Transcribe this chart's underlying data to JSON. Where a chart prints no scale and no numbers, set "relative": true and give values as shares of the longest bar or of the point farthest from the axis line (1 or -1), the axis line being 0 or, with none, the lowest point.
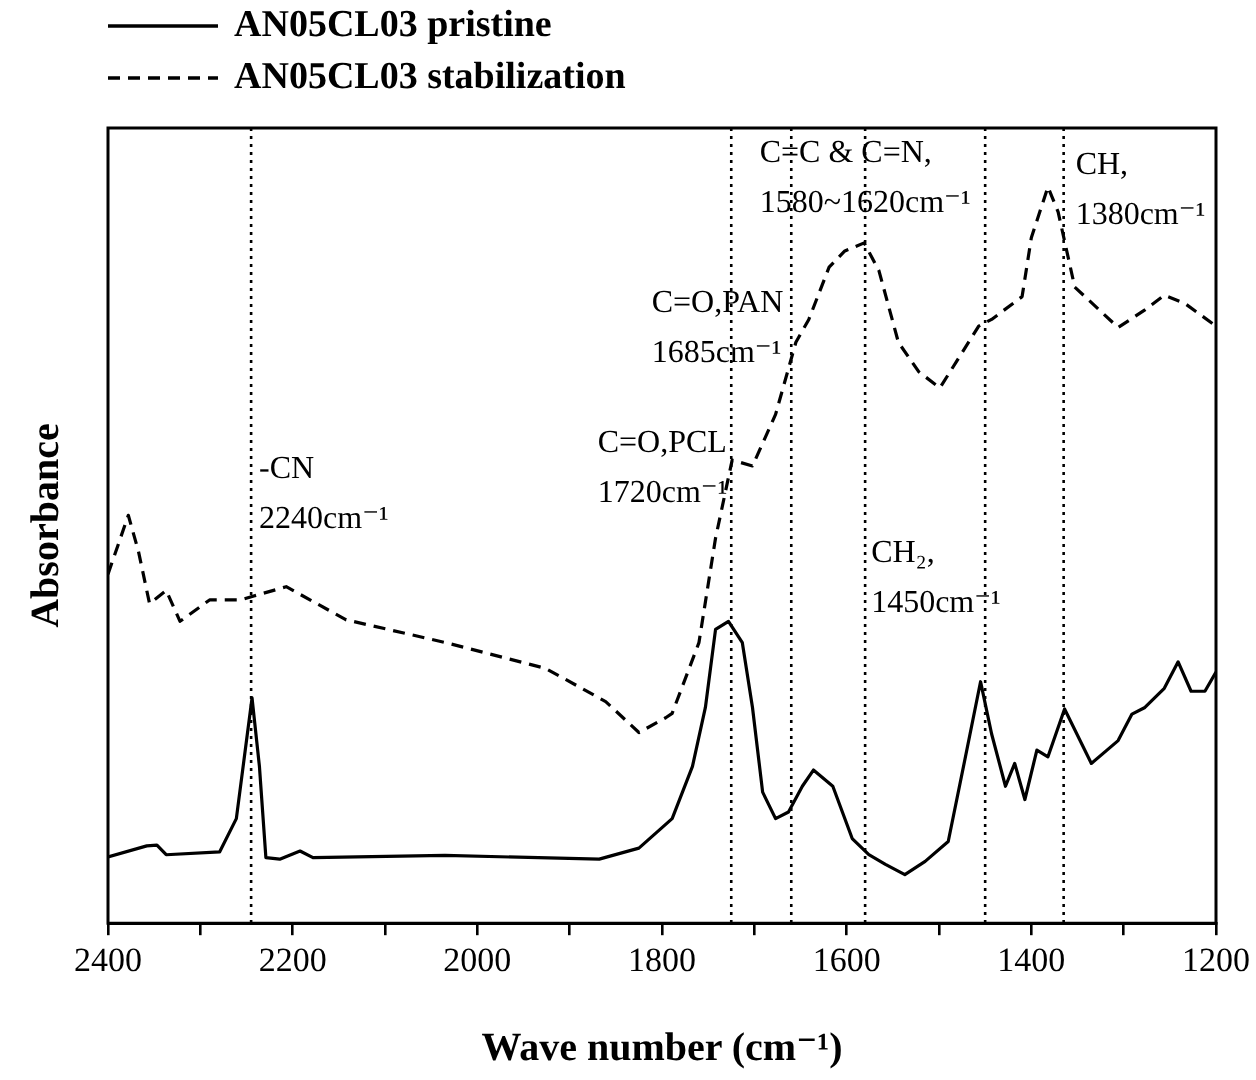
{
  "chart_data": {
    "type": "line",
    "relative": true,
    "xlabel": "Wave number (cm⁻¹)",
    "ylabel": "Absorbance",
    "xlim": [
      2400,
      1200
    ],
    "xticks": [
      2400,
      {
        "value": 2300,
        "label": null
      },
      2200,
      {
        "value": 2100,
        "label": null
      },
      2000,
      {
        "value": 1900,
        "label": null
      },
      1800,
      {
        "value": 1700,
        "label": null
      },
      1600,
      {
        "value": 1500,
        "label": null
      },
      1400,
      {
        "value": 1300,
        "label": null
      },
      1200
    ],
    "grid": false,
    "legend": "top left",
    "marker": "none",
    "series": [
      {
        "name": "AN05CL03 pristine",
        "color": "#000000",
        "line_style": "solid",
        "x": [
          2400,
          2358,
          2347,
          2337,
          2279,
          2261,
          2244,
          2236,
          2229,
          2214,
          2192,
          2178,
          2035,
          1868,
          1825,
          1789,
          1767,
          1753,
          1742,
          1728,
          1713,
          1702,
          1691,
          1677,
          1663,
          1648,
          1636,
          1615,
          1594,
          1576,
          1558,
          1537,
          1515,
          1490,
          1472,
          1455,
          1443,
          1428,
          1418,
          1407,
          1394,
          1382,
          1364,
          1335,
          1306,
          1291,
          1277,
          1256,
          1241,
          1227,
          1212,
          1200
        ],
        "values": [
          0.09,
          0.105,
          0.106,
          0.093,
          0.097,
          0.142,
          0.306,
          0.213,
          0.089,
          0.087,
          0.098,
          0.089,
          0.092,
          0.087,
          0.102,
          0.142,
          0.213,
          0.293,
          0.399,
          0.41,
          0.381,
          0.293,
          0.178,
          0.142,
          0.151,
          0.186,
          0.208,
          0.186,
          0.115,
          0.093,
          0.08,
          0.066,
          0.084,
          0.111,
          0.222,
          0.328,
          0.257,
          0.186,
          0.217,
          0.168,
          0.235,
          0.226,
          0.291,
          0.217,
          0.248,
          0.284,
          0.293,
          0.319,
          0.355,
          0.315,
          0.315,
          0.341
        ]
      },
      {
        "name": "AN05CL03 stabilization",
        "color": "#000000",
        "line_style": "dashed",
        "x": [
          2400,
          2378,
          2367,
          2355,
          2337,
          2322,
          2290,
          2257,
          2207,
          2142,
          2034,
          1926,
          1861,
          1825,
          1796,
          1789,
          1760,
          1742,
          1724,
          1702,
          1677,
          1655,
          1641,
          1619,
          1602,
          1581,
          1565,
          1544,
          1522,
          1499,
          1479,
          1457,
          1443,
          1410,
          1400,
          1382,
          1371,
          1353,
          1306,
          1277,
          1256,
          1234,
          1200
        ],
        "values": [
          0.474,
          0.554,
          0.505,
          0.434,
          0.452,
          0.41,
          0.439,
          0.439,
          0.457,
          0.412,
          0.381,
          0.346,
          0.301,
          0.259,
          0.279,
          0.285,
          0.381,
          0.523,
          0.629,
          0.621,
          0.691,
          0.789,
          0.82,
          0.891,
          0.913,
          0.924,
          0.886,
          0.789,
          0.749,
          0.727,
          0.767,
          0.811,
          0.82,
          0.851,
          0.931,
          1.0,
          0.966,
          0.864,
          0.809,
          0.833,
          0.853,
          0.842,
          0.811
        ]
      }
    ],
    "ref_lines": [
      {
        "axis": "x",
        "value": 2245,
        "line_style": "dotted"
      },
      {
        "axis": "x",
        "value": 1725,
        "line_style": "dotted"
      },
      {
        "axis": "x",
        "value": 1660,
        "line_style": "dotted"
      },
      {
        "axis": "x",
        "value": 1580,
        "line_style": "dotted"
      },
      {
        "axis": "x",
        "value": 1450,
        "line_style": "dotted"
      },
      {
        "axis": "x",
        "value": 1365,
        "line_style": "dotted"
      }
    ],
    "annotations": [
      {
        "text": "-CN\n2240cm⁻¹",
        "x": 2245
      },
      {
        "text": "C=O,PCL\n1720cm⁻¹",
        "x": 1725
      },
      {
        "text": "C=O,PAN\n1685cm⁻¹",
        "x": 1660
      },
      {
        "text": "C=C & C=N,\n1580~1620cm⁻¹",
        "x": 1580
      },
      {
        "text": "CH₂,\n1450cm⁻¹",
        "x": 1580
      },
      {
        "text": "CH,\n1380cm⁻¹",
        "x": 1365
      }
    ]
  }
}
